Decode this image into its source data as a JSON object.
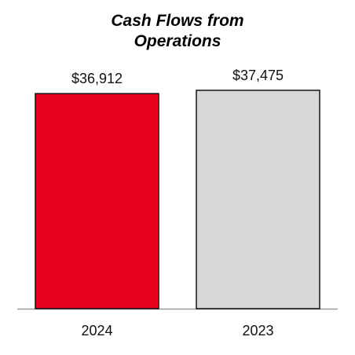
{
  "chart_data": {
    "type": "bar",
    "title": "Cash Flows from Operations",
    "categories": [
      "2024",
      "2023"
    ],
    "values": [
      36912,
      37475
    ],
    "value_labels": [
      "$36,912",
      "$37,475"
    ],
    "colors": [
      "#e8001e",
      "#d6d8d7"
    ]
  }
}
